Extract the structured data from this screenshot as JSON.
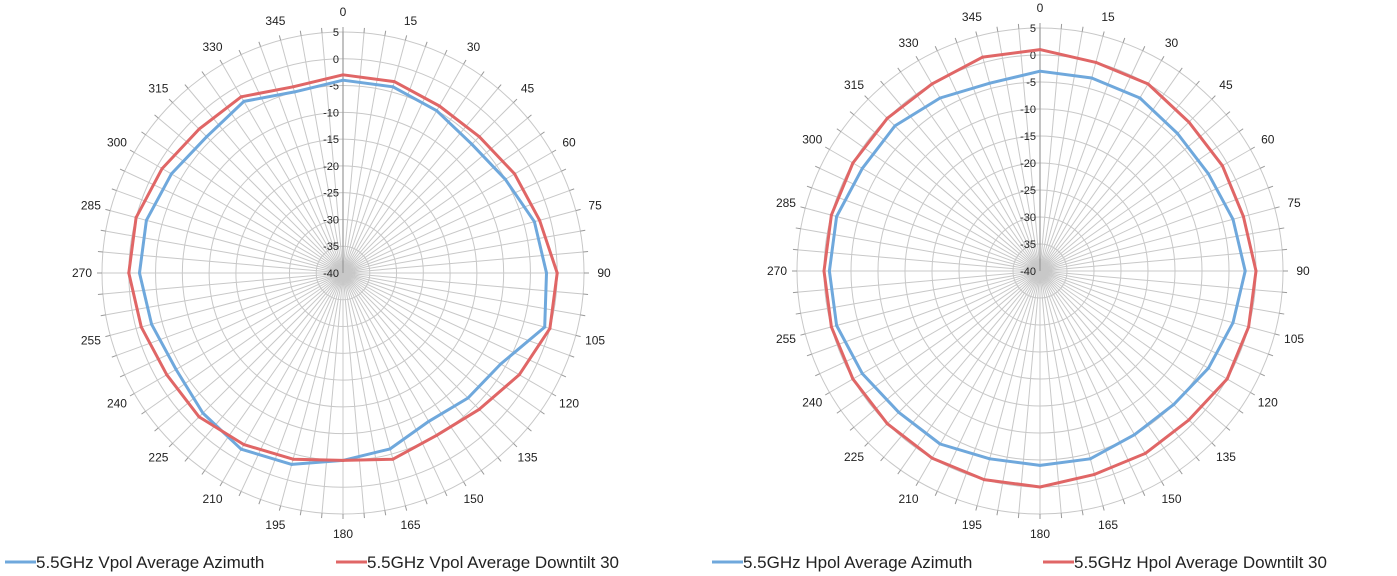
{
  "chart_data": [
    {
      "type": "radar",
      "angles": [
        0,
        15,
        30,
        45,
        60,
        75,
        90,
        105,
        120,
        135,
        150,
        165,
        180,
        195,
        210,
        225,
        240,
        255,
        270,
        285,
        300,
        315,
        330,
        345
      ],
      "r_ticks": [
        5,
        0,
        -5,
        -10,
        -15,
        -20,
        -25,
        -30,
        -35,
        -40
      ],
      "rlim": [
        -40,
        5
      ],
      "grid": true,
      "legend_position": "bottom",
      "series": [
        {
          "name": "5.5GHz Vpol Average Azimuth",
          "color": "#6fa8dc",
          "values": [
            -4,
            -4,
            -5,
            -6,
            -5,
            -3,
            -2,
            -1,
            -6,
            -7,
            -8,
            -6,
            -5,
            -3,
            -2,
            -3,
            -4,
            -3,
            -2,
            -2,
            -3,
            -4,
            -3,
            -5
          ]
        },
        {
          "name": "5.5GHz Vpol Average Downtilt 30",
          "color": "#e06666",
          "values": [
            -3,
            -3,
            -4,
            -4,
            -3,
            -2,
            0,
            0,
            -2,
            -4,
            -5,
            -4,
            -5,
            -4,
            -3,
            -2,
            -2,
            -1,
            0,
            0,
            -1,
            -2,
            -2,
            -4
          ]
        }
      ]
    },
    {
      "type": "radar",
      "angles": [
        0,
        15,
        30,
        45,
        60,
        75,
        90,
        105,
        120,
        135,
        150,
        165,
        180,
        195,
        210,
        225,
        240,
        255,
        270,
        285,
        300,
        315,
        330,
        345
      ],
      "r_ticks": [
        5,
        0,
        -5,
        -10,
        -15,
        -20,
        -25,
        -30,
        -35,
        -40
      ],
      "rlim": [
        -40,
        5
      ],
      "grid": true,
      "legend_position": "bottom",
      "series": [
        {
          "name": "5.5GHz Hpol Average Azimuth",
          "color": "#6fa8dc",
          "values": [
            -3,
            -3,
            -3,
            -4,
            -4,
            -3,
            -2,
            -3,
            -4,
            -5,
            -5,
            -4,
            -4,
            -4,
            -3,
            -3,
            -2,
            -1,
            -1,
            -1,
            -2,
            -2,
            -3,
            -4
          ]
        },
        {
          "name": "5.5GHz Hpol Average Downtilt 30",
          "color": "#e06666",
          "values": [
            1,
            0,
            0,
            -1,
            -1,
            -1,
            0,
            0,
            0,
            -1,
            -1,
            -1,
            0,
            0,
            0,
            0,
            0,
            0,
            0,
            0,
            0,
            0,
            0,
            1
          ]
        }
      ]
    }
  ]
}
